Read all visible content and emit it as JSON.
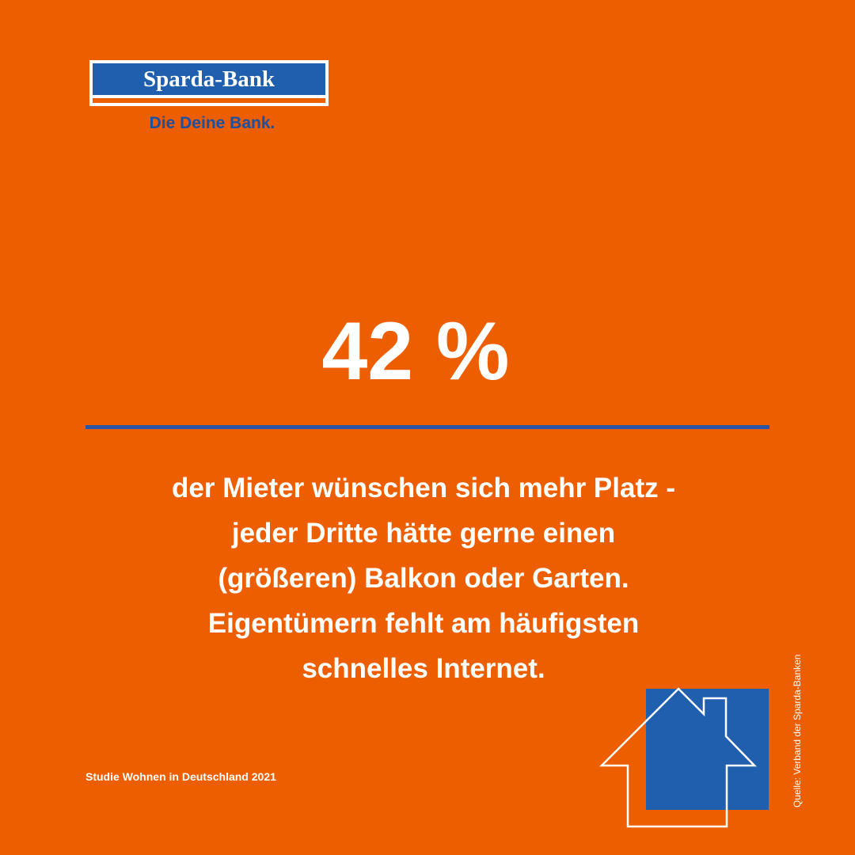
{
  "logo": {
    "name": "Sparda-Bank",
    "slogan": "Die Deine Bank."
  },
  "headline": "42 %",
  "body": [
    "der Mieter wünschen sich mehr Platz -",
    "jeder Dritte hätte gerne einen",
    "(größeren) Balkon oder Garten.",
    "Eigentümern fehlt am häufigsten",
    "schnelles Internet."
  ],
  "footer": "Studie Wohnen in Deutschland 2021",
  "source": "Quelle: Verband der Sparda-Banken"
}
